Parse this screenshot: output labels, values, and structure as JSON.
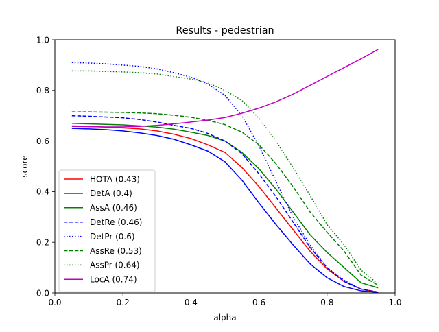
{
  "chart_data": {
    "type": "line",
    "title": "Results - pedestrian",
    "xlabel": "alpha",
    "ylabel": "score",
    "xlim": [
      0.0,
      1.0
    ],
    "ylim": [
      0.0,
      1.0
    ],
    "xticks": [
      "0.0",
      "0.2",
      "0.4",
      "0.6",
      "0.8",
      "1.0"
    ],
    "yticks": [
      "0.0",
      "0.2",
      "0.4",
      "0.6",
      "0.8",
      "1.0"
    ],
    "grid": false,
    "legend_position": "lower-left",
    "x": [
      0.05,
      0.1,
      0.15,
      0.2,
      0.25,
      0.3,
      0.35,
      0.4,
      0.45,
      0.5,
      0.55,
      0.6,
      0.65,
      0.7,
      0.75,
      0.8,
      0.85,
      0.9,
      0.95
    ],
    "series": [
      {
        "name": "HOTA (0.43)",
        "color": "#ff0000",
        "dash": "solid",
        "values": [
          0.66,
          0.658,
          0.655,
          0.652,
          0.648,
          0.64,
          0.627,
          0.61,
          0.585,
          0.555,
          0.495,
          0.42,
          0.335,
          0.25,
          0.165,
          0.095,
          0.045,
          0.015,
          0.003
        ]
      },
      {
        "name": "DetA (0.4)",
        "color": "#0000ff",
        "dash": "solid",
        "values": [
          0.65,
          0.648,
          0.645,
          0.64,
          0.632,
          0.622,
          0.607,
          0.585,
          0.56,
          0.518,
          0.445,
          0.355,
          0.27,
          0.19,
          0.115,
          0.06,
          0.025,
          0.008,
          0.002
        ]
      },
      {
        "name": "AssA (0.46)",
        "color": "#008000",
        "dash": "solid",
        "values": [
          0.67,
          0.668,
          0.666,
          0.664,
          0.66,
          0.655,
          0.647,
          0.635,
          0.622,
          0.6,
          0.555,
          0.49,
          0.41,
          0.32,
          0.23,
          0.16,
          0.1,
          0.04,
          0.02
        ]
      },
      {
        "name": "DetRe (0.46)",
        "color": "#0000ff",
        "dash": "dashed",
        "values": [
          0.7,
          0.698,
          0.695,
          0.692,
          0.685,
          0.675,
          0.662,
          0.65,
          0.63,
          0.6,
          0.55,
          0.47,
          0.38,
          0.28,
          0.18,
          0.1,
          0.045,
          0.015,
          0.003
        ]
      },
      {
        "name": "DetPr (0.6)",
        "color": "#0000ff",
        "dash": "dotted",
        "values": [
          0.91,
          0.908,
          0.905,
          0.9,
          0.895,
          0.885,
          0.87,
          0.852,
          0.825,
          0.78,
          0.7,
          0.58,
          0.44,
          0.3,
          0.19,
          0.1,
          0.05,
          0.015,
          0.003
        ]
      },
      {
        "name": "AssRe (0.53)",
        "color": "#008000",
        "dash": "dashed",
        "values": [
          0.715,
          0.715,
          0.714,
          0.713,
          0.711,
          0.708,
          0.702,
          0.694,
          0.682,
          0.665,
          0.635,
          0.585,
          0.51,
          0.42,
          0.32,
          0.24,
          0.165,
          0.07,
          0.03
        ]
      },
      {
        "name": "AssPr (0.64)",
        "color": "#008000",
        "dash": "dotted",
        "values": [
          0.877,
          0.877,
          0.875,
          0.873,
          0.87,
          0.865,
          0.855,
          0.845,
          0.83,
          0.8,
          0.76,
          0.69,
          0.6,
          0.495,
          0.385,
          0.27,
          0.19,
          0.09,
          0.035
        ]
      },
      {
        "name": "LocA (0.74)",
        "color": "#bf00bf",
        "dash": "solid",
        "values": [
          0.658,
          0.657,
          0.656,
          0.656,
          0.658,
          0.662,
          0.668,
          0.675,
          0.683,
          0.693,
          0.71,
          0.73,
          0.755,
          0.785,
          0.82,
          0.855,
          0.89,
          0.925,
          0.962
        ]
      }
    ]
  }
}
